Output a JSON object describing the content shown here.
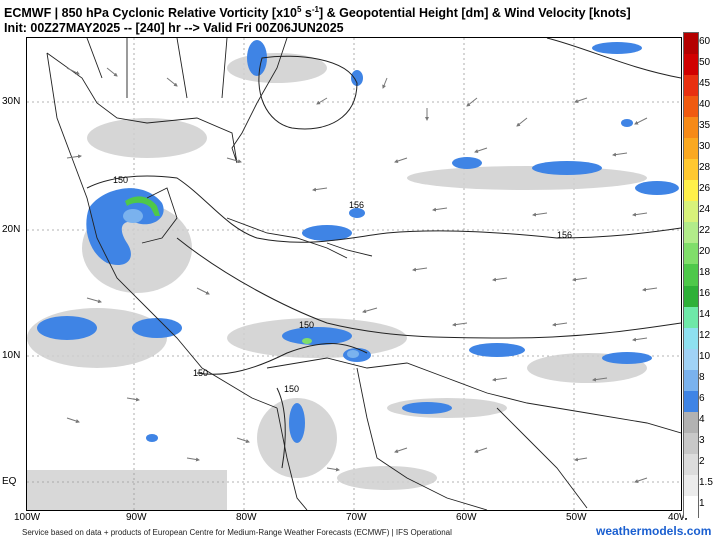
{
  "header": {
    "line1_prefix": "ECMWF | 850 hPa Cyclonic Relative Vorticity [x10",
    "line1_sup": "5",
    "line1_mid": " s",
    "line1_sup2": "-1",
    "line1_suffix": "] & Geopotential Height [dm] & Wind Velocity [knots]",
    "line2": "Init: 00Z27MAY2025 -- [240] hr --> Valid Fri 00Z06JUN2025"
  },
  "map": {
    "lat_labels": [
      "30N",
      "20N",
      "10N",
      "EQ"
    ],
    "lon_labels": [
      "100W",
      "90W",
      "80W",
      "70W",
      "60W",
      "50W",
      "40W"
    ],
    "contour_labels": [
      "150",
      "156",
      "156",
      "150",
      "150",
      "150"
    ]
  },
  "colorbar": {
    "levels": [
      "60",
      "50",
      "45",
      "40",
      "35",
      "30",
      "28",
      "26",
      "24",
      "22",
      "20",
      "18",
      "16",
      "14",
      "12",
      "10",
      "8",
      "6",
      "4",
      "3",
      "2",
      "1.5",
      "1"
    ],
    "colors": [
      "#b40000",
      "#d00000",
      "#e83010",
      "#f05a10",
      "#f68a18",
      "#faa820",
      "#ffc830",
      "#fff04a",
      "#d8f27a",
      "#b2ec8a",
      "#80de6a",
      "#4ec84a",
      "#2eb038",
      "#6ee8a8",
      "#8ee0f0",
      "#a0d2f5",
      "#7ab2ee",
      "#3f84e5",
      "#b2b2b2",
      "#c8c8c8",
      "#dcdcdc",
      "#ececec",
      "#ffffff"
    ]
  },
  "footer": {
    "credit": "Service based on data + products of European Centre for Medium-Range Weather Forecasts (ECMWF) | IFS Operational",
    "brand": "weathermodels.com"
  }
}
